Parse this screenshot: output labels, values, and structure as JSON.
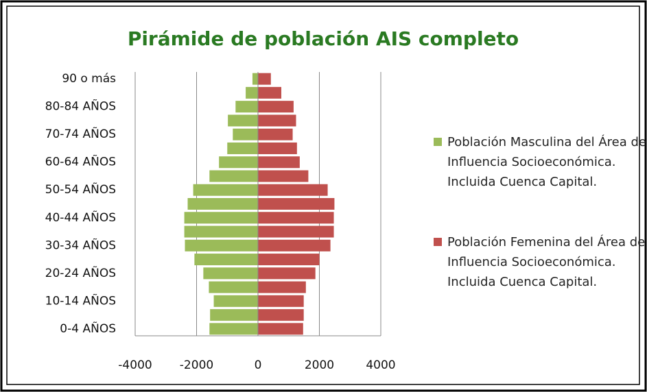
{
  "chart_data": {
    "type": "bar",
    "orientation": "horizontal",
    "stacked": false,
    "title": "Pirámide de población AIS completo",
    "categories": [
      "0-4 AÑOS",
      null,
      "10-14 AÑOS",
      null,
      "20-24 AÑOS",
      null,
      "30-34 AÑOS",
      null,
      "40-44 AÑOS",
      null,
      "50-54 AÑOS",
      null,
      "60-64 AÑOS",
      null,
      "70-74 AÑOS",
      null,
      "80-84 AÑOS",
      null,
      "90 o más"
    ],
    "series": [
      {
        "name": "Población Masculina del Área de Influencia Socioeconómica. Incluida Cuenca Capital.",
        "color": "#9bbb59",
        "values": [
          -1580,
          -1560,
          -1440,
          -1600,
          -1780,
          -2070,
          -2380,
          -2400,
          -2400,
          -2290,
          -2110,
          -1580,
          -1270,
          -1000,
          -820,
          -980,
          -730,
          -400,
          -180
        ]
      },
      {
        "name": "Población Femenina del Área de Influencia Socioeconómica. Incluida Cuenca Capital.",
        "color": "#c0504d",
        "values": [
          1470,
          1490,
          1490,
          1560,
          1870,
          2000,
          2360,
          2470,
          2470,
          2490,
          2270,
          1640,
          1360,
          1270,
          1130,
          1240,
          1160,
          760,
          420
        ]
      }
    ],
    "xlim": [
      -4000,
      4000
    ],
    "xticks": [
      -4000,
      -2000,
      0,
      2000,
      4000
    ],
    "grid": true,
    "legend": "right"
  }
}
